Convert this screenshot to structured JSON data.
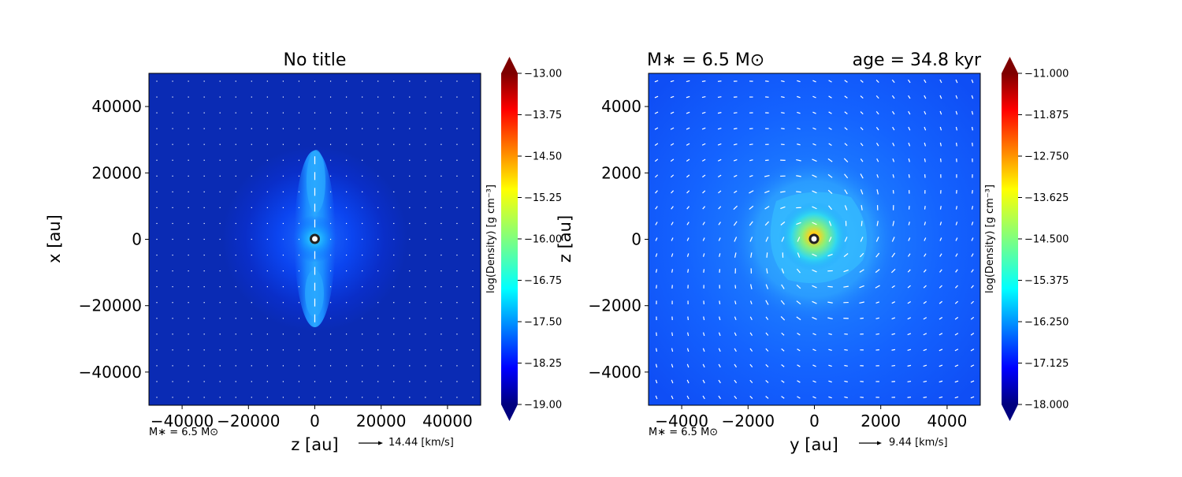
{
  "chart_data": [
    {
      "type": "heatmap",
      "title": "No title",
      "xlabel": "z [au]",
      "ylabel": "x [au]",
      "xlim": [
        -50000,
        50000
      ],
      "ylim": [
        -50000,
        50000
      ],
      "xticks": [
        -40000,
        -20000,
        0,
        20000,
        40000
      ],
      "yticks": [
        -40000,
        -20000,
        0,
        20000,
        40000
      ],
      "xtick_labels": [
        "−40000",
        "−20000",
        "0",
        "20000",
        "40000"
      ],
      "ytick_labels": [
        "−40000",
        "−20000",
        "0",
        "20000",
        "40000"
      ],
      "colorbar": {
        "label": "log(Density) [g cm⁻³]",
        "min": -19.0,
        "max": -13.0,
        "ticks": [
          -13.0,
          -13.75,
          -14.5,
          -15.25,
          -16.0,
          -16.75,
          -17.5,
          -18.25,
          -19.0
        ],
        "tick_labels": [
          "−13.00",
          "−13.75",
          "−14.50",
          "−15.25",
          "−16.00",
          "−16.75",
          "−17.50",
          "−18.25",
          "−19.00"
        ]
      },
      "annotation": "M∗ = 6.5 M⊙",
      "quiver_key": "14.44 [km/s]",
      "sink_position": [
        0,
        0
      ]
    },
    {
      "type": "heatmap",
      "title_left": "M∗ = 6.5 M⊙",
      "title_right": "age = 34.8 kyr",
      "xlabel": "y [au]",
      "ylabel": "z [au]",
      "xlim": [
        -5000,
        5000
      ],
      "ylim": [
        -5000,
        5000
      ],
      "xticks": [
        -4000,
        -2000,
        0,
        2000,
        4000
      ],
      "yticks": [
        -4000,
        -2000,
        0,
        2000,
        4000
      ],
      "xtick_labels": [
        "−4000",
        "−2000",
        "0",
        "2000",
        "4000"
      ],
      "ytick_labels": [
        "−4000",
        "−2000",
        "0",
        "2000",
        "4000"
      ],
      "colorbar": {
        "label": "log(Density) [g cm⁻³]",
        "min": -18.0,
        "max": -11.0,
        "ticks": [
          -11.0,
          -11.875,
          -12.75,
          -13.625,
          -14.5,
          -15.375,
          -16.25,
          -17.125,
          -18.0
        ],
        "tick_labels": [
          "−11.000",
          "−11.875",
          "−12.750",
          "−13.625",
          "−14.500",
          "−15.375",
          "−16.250",
          "−17.125",
          "−18.000"
        ]
      },
      "annotation": "M∗ = 6.5 M⊙",
      "quiver_key": "9.44 [km/s]",
      "sink_position": [
        0,
        0
      ]
    }
  ]
}
